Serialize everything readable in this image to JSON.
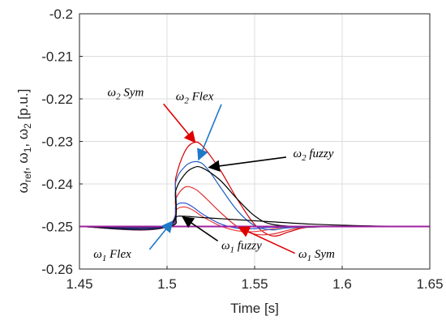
{
  "chart_data": {
    "type": "line",
    "title": "",
    "xlabel": "Time [s]",
    "ylabel_parts": {
      "w": "ω",
      "ref": "ref",
      "sep1": ", ω",
      "one": "1",
      "sep2": ", ω",
      "two": "2",
      "unit": " [p.u.]"
    },
    "xlim": [
      1.45,
      1.65
    ],
    "ylim": [
      -0.26,
      -0.2
    ],
    "x_ticks": [
      "1.45",
      "1.5",
      "1.55",
      "1.6",
      "1.65"
    ],
    "y_ticks": [
      "-0.2",
      "-0.21",
      "-0.22",
      "-0.23",
      "-0.24",
      "-0.25",
      "-0.26"
    ],
    "grid": true,
    "series": [
      {
        "color": "#d40000",
        "x": [
          1.45,
          1.5,
          1.505,
          1.51,
          1.515,
          1.52,
          1.53,
          1.54,
          1.55,
          1.56,
          1.57,
          1.58,
          1.6,
          1.65
        ],
        "y": [
          -0.25,
          -0.25,
          -0.2385,
          -0.2325,
          -0.2303,
          -0.231,
          -0.2365,
          -0.2435,
          -0.2495,
          -0.2522,
          -0.2512,
          -0.2502,
          -0.25,
          -0.25
        ]
      },
      {
        "color": "#e03030",
        "x": [
          1.45,
          1.5,
          1.505,
          1.51,
          1.515,
          1.52,
          1.53,
          1.54,
          1.55,
          1.56,
          1.57,
          1.58,
          1.6,
          1.65
        ],
        "y": [
          -0.25,
          -0.25,
          -0.2435,
          -0.2408,
          -0.241,
          -0.2425,
          -0.2465,
          -0.25,
          -0.2518,
          -0.2518,
          -0.2508,
          -0.2501,
          -0.25,
          -0.25
        ]
      },
      {
        "color": "#e84040",
        "x": [
          1.45,
          1.5,
          1.505,
          1.51,
          1.515,
          1.52,
          1.53,
          1.54,
          1.55,
          1.56,
          1.57,
          1.6,
          1.65
        ],
        "y": [
          -0.25,
          -0.25,
          -0.2462,
          -0.2454,
          -0.2462,
          -0.2476,
          -0.2498,
          -0.251,
          -0.2512,
          -0.2506,
          -0.2501,
          -0.25,
          -0.25
        ]
      },
      {
        "color": "#1f5fbf",
        "x": [
          1.45,
          1.5,
          1.505,
          1.51,
          1.515,
          1.52,
          1.525,
          1.53,
          1.54,
          1.55,
          1.56,
          1.57,
          1.6,
          1.65
        ],
        "y": [
          -0.25,
          -0.25,
          -0.2395,
          -0.236,
          -0.2348,
          -0.2352,
          -0.2375,
          -0.2405,
          -0.2462,
          -0.2498,
          -0.2508,
          -0.2503,
          -0.25,
          -0.25
        ]
      },
      {
        "color": "#2a4fd0",
        "x": [
          1.45,
          1.5,
          1.505,
          1.51,
          1.515,
          1.52,
          1.53,
          1.54,
          1.55,
          1.56,
          1.6,
          1.65
        ],
        "y": [
          -0.25,
          -0.25,
          -0.2452,
          -0.2445,
          -0.2455,
          -0.247,
          -0.2493,
          -0.2504,
          -0.2505,
          -0.2502,
          -0.25,
          -0.25
        ]
      },
      {
        "color": "#000000",
        "x": [
          1.45,
          1.5,
          1.505,
          1.51,
          1.515,
          1.52,
          1.53,
          1.54,
          1.55,
          1.56,
          1.58,
          1.6,
          1.65
        ],
        "y": [
          -0.25,
          -0.25,
          -0.2415,
          -0.2378,
          -0.2362,
          -0.2362,
          -0.239,
          -0.2435,
          -0.2475,
          -0.2495,
          -0.2501,
          -0.25,
          -0.25
        ]
      },
      {
        "color": "#000000",
        "x": [
          1.45,
          1.5,
          1.505,
          1.51,
          1.52,
          1.54,
          1.56,
          1.58,
          1.6,
          1.62,
          1.65
        ],
        "y": [
          -0.25,
          -0.25,
          -0.2478,
          -0.2476,
          -0.2479,
          -0.2484,
          -0.2489,
          -0.2494,
          -0.2497,
          -0.2499,
          -0.25
        ]
      },
      {
        "color": "#a020a0",
        "x": [
          1.45,
          1.65
        ],
        "y": [
          -0.25,
          -0.25
        ]
      }
    ],
    "annotations": [
      {
        "sym": "ω",
        "sub": "2",
        "label": " Sym",
        "text_pos": [
          1.466,
          -0.2193
        ],
        "arrow_color": "#e00000",
        "arrow_from": [
          1.498,
          -0.2212
        ],
        "arrow_to": [
          1.516,
          -0.2302
        ]
      },
      {
        "sym": "ω",
        "sub": "2",
        "label": " Flex",
        "text_pos": [
          1.505,
          -0.2203
        ],
        "arrow_color": "#1f78c8",
        "arrow_from": [
          1.531,
          -0.2213
        ],
        "arrow_to": [
          1.518,
          -0.2343
        ]
      },
      {
        "sym": "ω",
        "sub": "2",
        "label": " fuzzy",
        "text_pos": [
          1.572,
          -0.2337
        ],
        "arrow_color": "#000000",
        "arrow_from": [
          1.568,
          -0.2337
        ],
        "arrow_to": [
          1.524,
          -0.2361
        ]
      },
      {
        "sym": "ω",
        "sub": "1",
        "label": " Flex",
        "text_pos": [
          1.458,
          -0.2573
        ],
        "arrow_color": "#1f78c8",
        "arrow_from": [
          1.49,
          -0.2554
        ],
        "arrow_to": [
          1.503,
          -0.2488
        ]
      },
      {
        "sym": "ω",
        "sub": "1",
        "label": " fuzzy",
        "text_pos": [
          1.531,
          -0.2553
        ],
        "arrow_color": "#000000",
        "arrow_from": [
          1.529,
          -0.2534
        ],
        "arrow_to": [
          1.509,
          -0.2478
        ]
      },
      {
        "sym": "ω",
        "sub": "1",
        "label": " Sym",
        "text_pos": [
          1.575,
          -0.2573
        ],
        "arrow_color": "#e00000",
        "arrow_from": [
          1.573,
          -0.2563
        ],
        "arrow_to": [
          1.541,
          -0.2502
        ]
      }
    ]
  }
}
